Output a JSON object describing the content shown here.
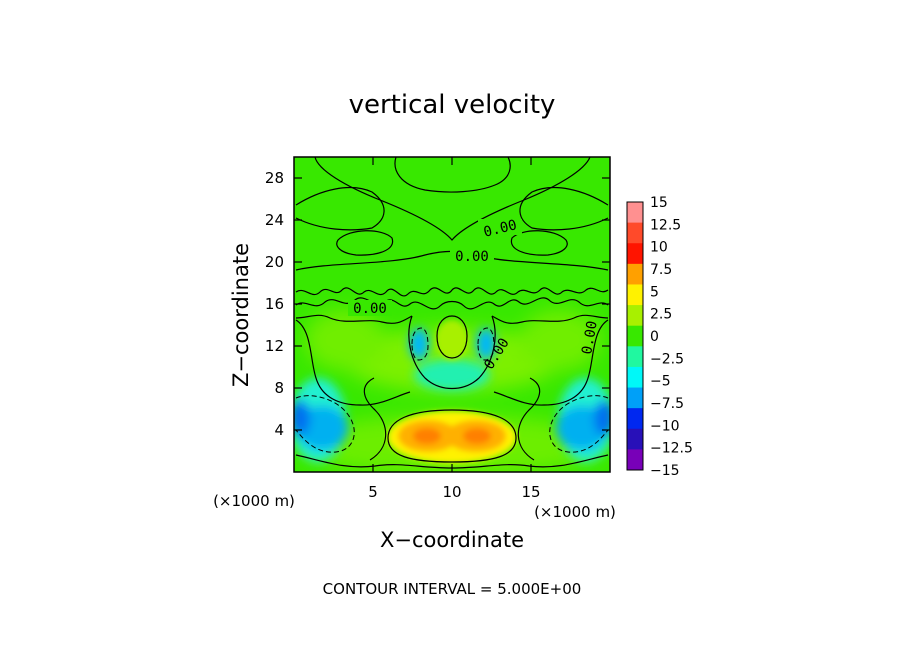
{
  "chart_data": {
    "type": "heatmap",
    "title": "vertical velocity",
    "xlabel": "X−coordinate",
    "ylabel": "Z−coordinate",
    "x_unit": "(×1000 m)",
    "y_unit": "(×1000 m)",
    "xlim": [
      0,
      20
    ],
    "ylim": [
      0,
      30
    ],
    "x_ticks": [
      5,
      10,
      15
    ],
    "y_ticks": [
      4,
      8,
      12,
      16,
      20,
      24,
      28
    ],
    "x_tick_labels": [
      "5",
      "10",
      "15"
    ],
    "y_tick_labels": [
      "4",
      "8",
      "12",
      "16",
      "20",
      "24",
      "28"
    ],
    "footer": "CONTOUR INTERVAL = 5.000E+00",
    "contour_label": "0.00",
    "colorbar": {
      "levels": [
        15,
        12.5,
        10,
        7.5,
        5,
        2.5,
        0,
        -2.5,
        -5,
        -7.5,
        -10,
        -12.5,
        -15
      ],
      "labels": [
        "15",
        "12.5",
        "10",
        "7.5",
        "5",
        "2.5",
        "0",
        "−2.5",
        "−5",
        "−7.5",
        "−10",
        "−12.5",
        "−15"
      ],
      "colors": [
        "#ff9090",
        "#ff4a2a",
        "#ff1400",
        "#ffa000",
        "#fff200",
        "#a8f000",
        "#38e800",
        "#20f8a0",
        "#00f8f8",
        "#00a0f8",
        "#0028f0",
        "#2810b8",
        "#7800b8"
      ]
    },
    "features": [
      {
        "kind": "updraft",
        "x": 8.3,
        "z": 2.6,
        "peak": 9.5
      },
      {
        "kind": "updraft",
        "x": 11.7,
        "z": 2.6,
        "peak": 9.5
      },
      {
        "kind": "updraft",
        "x": 10.0,
        "z": 3.1,
        "peak": 5.0
      },
      {
        "kind": "updraft",
        "x": 10.0,
        "z": 9.8,
        "peak": 2.3
      },
      {
        "kind": "downdraft",
        "x": 1.6,
        "z": 3.4,
        "peak": -8.5
      },
      {
        "kind": "downdraft",
        "x": 18.4,
        "z": 3.4,
        "peak": -8.5
      },
      {
        "kind": "downdraft",
        "x": 0.3,
        "z": 4.5,
        "peak": -6.0
      },
      {
        "kind": "downdraft",
        "x": 19.7,
        "z": 4.5,
        "peak": -6.0
      },
      {
        "kind": "downdraft",
        "x": 7.8,
        "z": 10.2,
        "peak": -6.5
      },
      {
        "kind": "downdraft",
        "x": 12.2,
        "z": 10.2,
        "peak": -6.5
      },
      {
        "kind": "downdraft",
        "x": 10.0,
        "z": 6.0,
        "peak": -3.0
      }
    ]
  }
}
